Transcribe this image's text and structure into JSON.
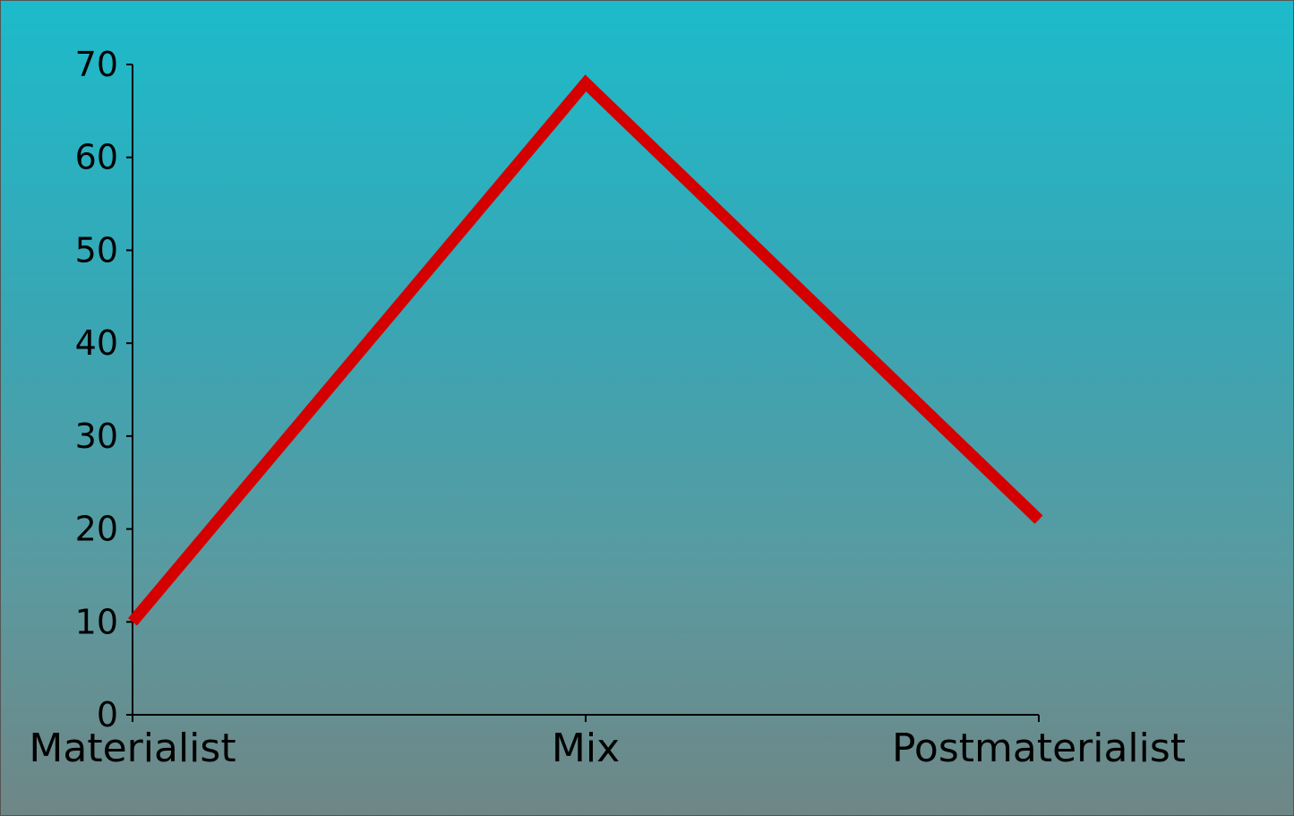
{
  "chart_data": {
    "type": "line",
    "categories": [
      "Materialist",
      "Mix",
      "Postmaterialist"
    ],
    "series": [
      {
        "values": [
          10,
          68,
          21
        ],
        "color": "#d40000"
      }
    ],
    "ylim": [
      0,
      70
    ],
    "yticks": [
      "0",
      "10",
      "20",
      "30",
      "40",
      "50",
      "60",
      "70"
    ],
    "grid": false,
    "background_color": "#1cbbcb"
  }
}
